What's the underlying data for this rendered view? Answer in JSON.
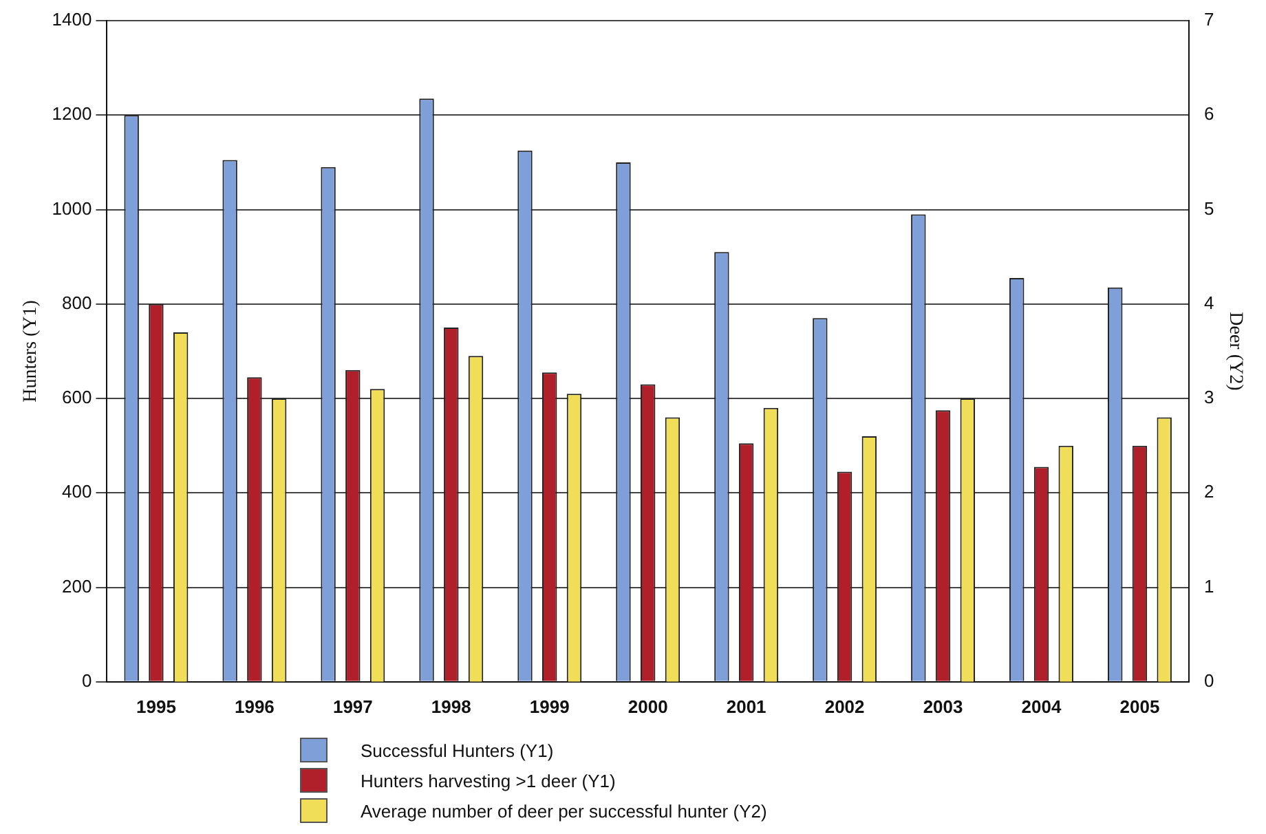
{
  "chart_data": {
    "type": "bar",
    "categories": [
      "1995",
      "1996",
      "1997",
      "1998",
      "1999",
      "2000",
      "2001",
      "2002",
      "2003",
      "2004",
      "2005"
    ],
    "ylabel": "Hunters (Y1)",
    "y2label": "Deer (Y2)",
    "series": [
      {
        "name": "Successful Hunters (Y1)",
        "color": "#7f9fd8",
        "values": [
          1200,
          1105,
          1090,
          1235,
          1125,
          1100,
          910,
          770,
          990,
          855,
          835
        ]
      },
      {
        "name": "Hunters harvesting >1 deer (Y1)",
        "color": "#b0202a",
        "values": [
          800,
          645,
          660,
          750,
          655,
          630,
          505,
          445,
          575,
          455,
          500
        ]
      },
      {
        "name": "Average number of deer per successful hunter (Y2)",
        "color": "#f0de58",
        "axis": "y2",
        "values": [
          3.7,
          3.0,
          3.1,
          3.45,
          3.05,
          2.8,
          2.9,
          2.6,
          3.0,
          2.5,
          2.8
        ]
      }
    ],
    "ylim": [
      0,
      1400
    ],
    "yticks": [
      0,
      200,
      400,
      600,
      800,
      1000,
      1200,
      1400
    ],
    "y2lim": [
      0,
      7
    ],
    "y2ticks": [
      0,
      1,
      2,
      3,
      4,
      5,
      6,
      7
    ],
    "grid": "y",
    "legend": "bottom"
  }
}
